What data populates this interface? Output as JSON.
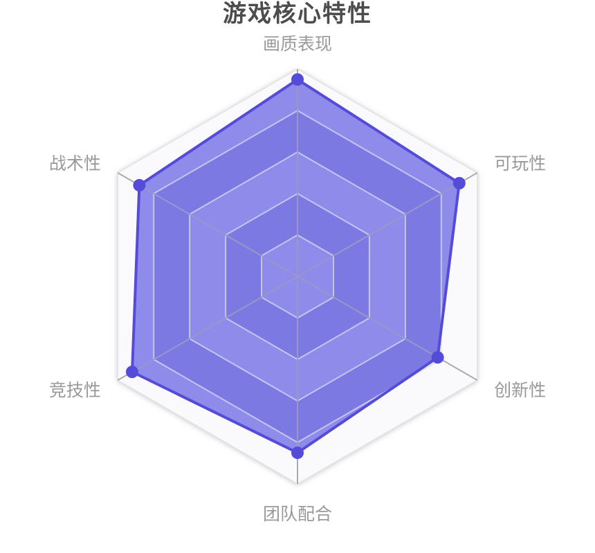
{
  "page": {
    "background": "#ffffff"
  },
  "chart_data": {
    "type": "radar",
    "title": "游戏核心特性",
    "levels": 5,
    "max": 100,
    "indicators": [
      {
        "name": "画质表现",
        "max": 100
      },
      {
        "name": "可玩性",
        "max": 100
      },
      {
        "name": "创新性",
        "max": 100
      },
      {
        "name": "团队配合",
        "max": 100
      },
      {
        "name": "竞技性",
        "max": 100
      },
      {
        "name": "战术性",
        "max": 100
      }
    ],
    "series": [
      {
        "name": "游戏核心特性",
        "values": [
          95,
          90,
          78,
          85,
          92,
          88
        ]
      }
    ],
    "legend_position": "none",
    "grid": "hexagonal, 5 levels, alternating split areas",
    "style": {
      "series_color": "#544BD9",
      "fill_band_light": "#8E8BEB",
      "fill_band_dark": "#7C7AE2",
      "outer_band_light": "#FAFAFC",
      "outer_band_dark": "#EBEBEF",
      "grid_line_outside": "#E2E2E7",
      "grid_line_inside": "#C6C5EE",
      "spoke_outside": "#AAAAAD",
      "spoke_inside": "#9997C9",
      "axis_label_color": "#999999",
      "title_color": "#4C4C4C",
      "point_radius": 9,
      "border_width": 4
    }
  }
}
